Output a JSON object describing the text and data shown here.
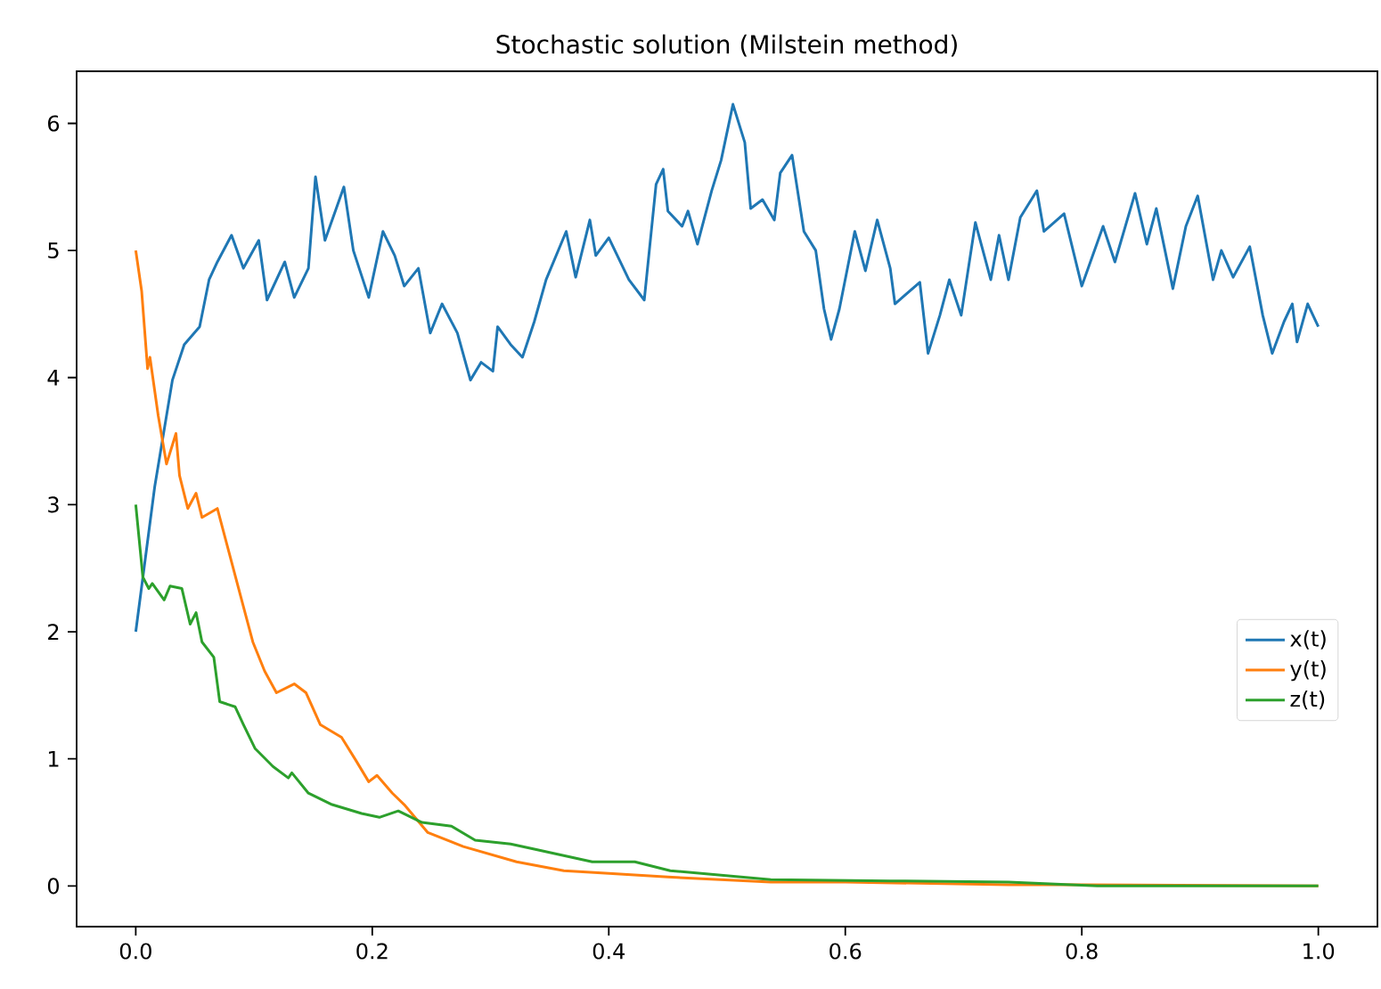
{
  "chart_data": {
    "type": "line",
    "title": "Stochastic solution (Milstein method)",
    "xlim": [
      -0.05,
      1.05
    ],
    "ylim": [
      -0.32,
      6.41
    ],
    "xticks": [
      {
        "value": 0,
        "label": "0.0"
      },
      {
        "value": 0.2,
        "label": "0.2"
      },
      {
        "value": 0.4,
        "label": "0.4"
      },
      {
        "value": 0.6,
        "label": "0.6"
      },
      {
        "value": 0.8,
        "label": "0.8"
      },
      {
        "value": 1,
        "label": "1.0"
      }
    ],
    "yticks": [
      0,
      1,
      2,
      3,
      4,
      5,
      6
    ],
    "grid": false,
    "legend": "center right",
    "line_style": "solid",
    "marker": "none",
    "series": [
      {
        "name": "x(t)",
        "color": "#1f77b4",
        "x": [
          0,
          0.016,
          0.031,
          0.041,
          0.054,
          0.062,
          0.069,
          0.081,
          0.091,
          0.104,
          0.111,
          0.126,
          0.134,
          0.146,
          0.152,
          0.16,
          0.176,
          0.184,
          0.197,
          0.209,
          0.219,
          0.227,
          0.239,
          0.249,
          0.259,
          0.272,
          0.283,
          0.292,
          0.302,
          0.306,
          0.317,
          0.327,
          0.337,
          0.347,
          0.364,
          0.372,
          0.384,
          0.389,
          0.4,
          0.417,
          0.43,
          0.44,
          0.446,
          0.45,
          0.462,
          0.467,
          0.475,
          0.487,
          0.495,
          0.505,
          0.515,
          0.52,
          0.53,
          0.54,
          0.545,
          0.555,
          0.565,
          0.575,
          0.582,
          0.588,
          0.595,
          0.608,
          0.617,
          0.627,
          0.638,
          0.642,
          0.663,
          0.67,
          0.68,
          0.688,
          0.698,
          0.71,
          0.723,
          0.73,
          0.738,
          0.748,
          0.762,
          0.768,
          0.785,
          0.8,
          0.818,
          0.828,
          0.845,
          0.855,
          0.863,
          0.877,
          0.888,
          0.898,
          0.911,
          0.918,
          0.928,
          0.942,
          0.953,
          0.961,
          0.971,
          0.978,
          0.982,
          0.991,
          1.0
        ],
        "values": [
          2.0,
          3.14,
          3.98,
          4.26,
          4.4,
          4.77,
          4.91,
          5.12,
          4.86,
          5.08,
          4.61,
          4.91,
          4.63,
          4.86,
          5.58,
          5.08,
          5.5,
          5.0,
          4.63,
          5.15,
          4.96,
          4.72,
          4.86,
          4.35,
          4.58,
          4.35,
          3.98,
          4.12,
          4.05,
          4.4,
          4.26,
          4.16,
          4.44,
          4.77,
          5.15,
          4.79,
          5.24,
          4.96,
          5.1,
          4.77,
          4.61,
          5.52,
          5.64,
          5.31,
          5.19,
          5.31,
          5.05,
          5.47,
          5.71,
          6.15,
          5.85,
          5.33,
          5.4,
          5.24,
          5.61,
          5.75,
          5.15,
          5.0,
          4.54,
          4.3,
          4.54,
          5.15,
          4.84,
          5.24,
          4.86,
          4.58,
          4.75,
          4.19,
          4.49,
          4.77,
          4.49,
          5.22,
          4.77,
          5.12,
          4.77,
          5.26,
          5.47,
          5.15,
          5.29,
          4.72,
          5.19,
          4.91,
          5.45,
          5.05,
          5.33,
          4.7,
          5.19,
          5.43,
          4.77,
          5.0,
          4.79,
          5.03,
          4.49,
          4.19,
          4.44,
          4.58,
          4.28,
          4.58,
          4.4
        ]
      },
      {
        "name": "y(t)",
        "color": "#ff7f0e",
        "x": [
          0,
          0.005,
          0.01,
          0.012,
          0.019,
          0.026,
          0.034,
          0.037,
          0.044,
          0.051,
          0.056,
          0.069,
          0.079,
          0.091,
          0.099,
          0.109,
          0.119,
          0.134,
          0.144,
          0.156,
          0.174,
          0.186,
          0.197,
          0.204,
          0.217,
          0.227,
          0.247,
          0.277,
          0.322,
          0.362,
          0.397,
          0.45,
          0.537,
          0.6,
          0.738,
          0.8,
          1.0
        ],
        "values": [
          5.0,
          4.68,
          4.07,
          4.16,
          3.7,
          3.32,
          3.56,
          3.23,
          2.97,
          3.09,
          2.9,
          2.97,
          2.62,
          2.2,
          1.92,
          1.69,
          1.52,
          1.59,
          1.52,
          1.27,
          1.17,
          0.99,
          0.82,
          0.87,
          0.73,
          0.64,
          0.42,
          0.31,
          0.19,
          0.12,
          0.1,
          0.07,
          0.03,
          0.03,
          0.01,
          0.01,
          0.0
        ]
      },
      {
        "name": "z(t)",
        "color": "#2ca02c",
        "x": [
          0,
          0.006,
          0.011,
          0.014,
          0.024,
          0.029,
          0.039,
          0.046,
          0.051,
          0.056,
          0.066,
          0.071,
          0.084,
          0.091,
          0.101,
          0.116,
          0.129,
          0.132,
          0.146,
          0.166,
          0.191,
          0.206,
          0.222,
          0.242,
          0.267,
          0.287,
          0.317,
          0.337,
          0.386,
          0.422,
          0.452,
          0.537,
          0.638,
          0.738,
          0.813,
          1.0
        ],
        "values": [
          3.0,
          2.43,
          2.34,
          2.38,
          2.25,
          2.36,
          2.34,
          2.06,
          2.15,
          1.92,
          1.8,
          1.45,
          1.41,
          1.27,
          1.08,
          0.94,
          0.85,
          0.89,
          0.73,
          0.64,
          0.57,
          0.54,
          0.59,
          0.5,
          0.47,
          0.36,
          0.33,
          0.29,
          0.19,
          0.19,
          0.12,
          0.05,
          0.04,
          0.03,
          0.0,
          0.0
        ]
      }
    ]
  }
}
